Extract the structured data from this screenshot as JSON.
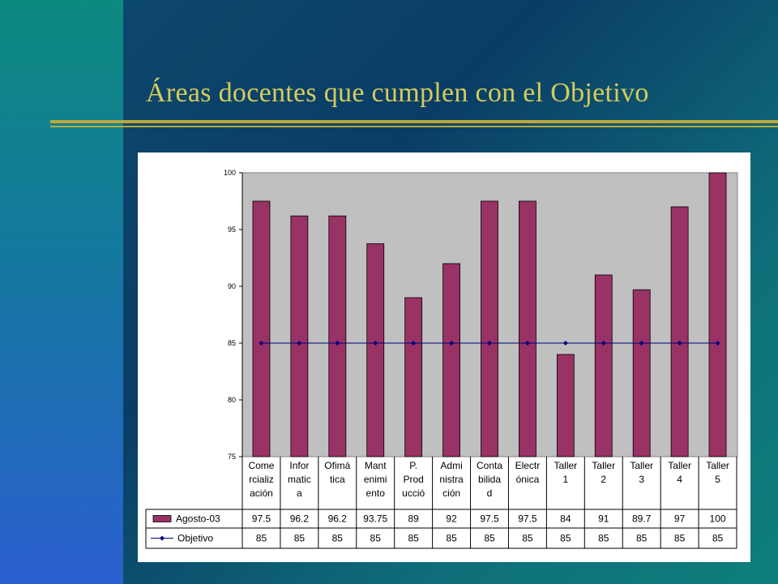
{
  "slide": {
    "title": "Áreas docentes que cumplen con el Objetivo"
  },
  "colors": {
    "bar": "#993366",
    "objective_line": "#000080",
    "plot_background": "#c0c0c0",
    "title": "#d6cc5a",
    "accent_rule": "#b7a93a"
  },
  "chart_data": {
    "type": "bar",
    "categories": [
      [
        "Come",
        "rcializ",
        "ación"
      ],
      [
        "Infor",
        "matic",
        "a"
      ],
      [
        "Ofimá",
        "tica"
      ],
      [
        "Mant",
        "enimi",
        "ento"
      ],
      [
        "P.",
        "Prod",
        "ucció"
      ],
      [
        "Admi",
        "nistra",
        "ción"
      ],
      [
        "Conta",
        "bilida",
        "d"
      ],
      [
        "Electr",
        "ónica"
      ],
      [
        "Taller",
        "1"
      ],
      [
        "Taller",
        "2"
      ],
      [
        "Taller",
        "3"
      ],
      [
        "Taller",
        "4"
      ],
      [
        "Taller",
        "5"
      ]
    ],
    "series": [
      {
        "name": "Agosto-03",
        "kind": "bar",
        "values": [
          97.5,
          96.2,
          96.2,
          93.75,
          89,
          92,
          97.5,
          97.5,
          84,
          91,
          89.7,
          97,
          100
        ],
        "labels": [
          "97.5",
          "96.2",
          "96.2",
          "93.75",
          "89",
          "92",
          "97.5",
          "97.5",
          "84",
          "91",
          "89.7",
          "97",
          "100"
        ]
      },
      {
        "name": "Objetivo",
        "kind": "line",
        "values": [
          85,
          85,
          85,
          85,
          85,
          85,
          85,
          85,
          85,
          85,
          85,
          85,
          85
        ],
        "labels": [
          "85",
          "85",
          "85",
          "85",
          "85",
          "85",
          "85",
          "85",
          "85",
          "85",
          "85",
          "85",
          "85"
        ]
      }
    ],
    "ylim": [
      75,
      100
    ],
    "yticks": [
      "75",
      "80",
      "85",
      "90",
      "95",
      "100"
    ],
    "grid": false,
    "legend": "data table below chart"
  }
}
